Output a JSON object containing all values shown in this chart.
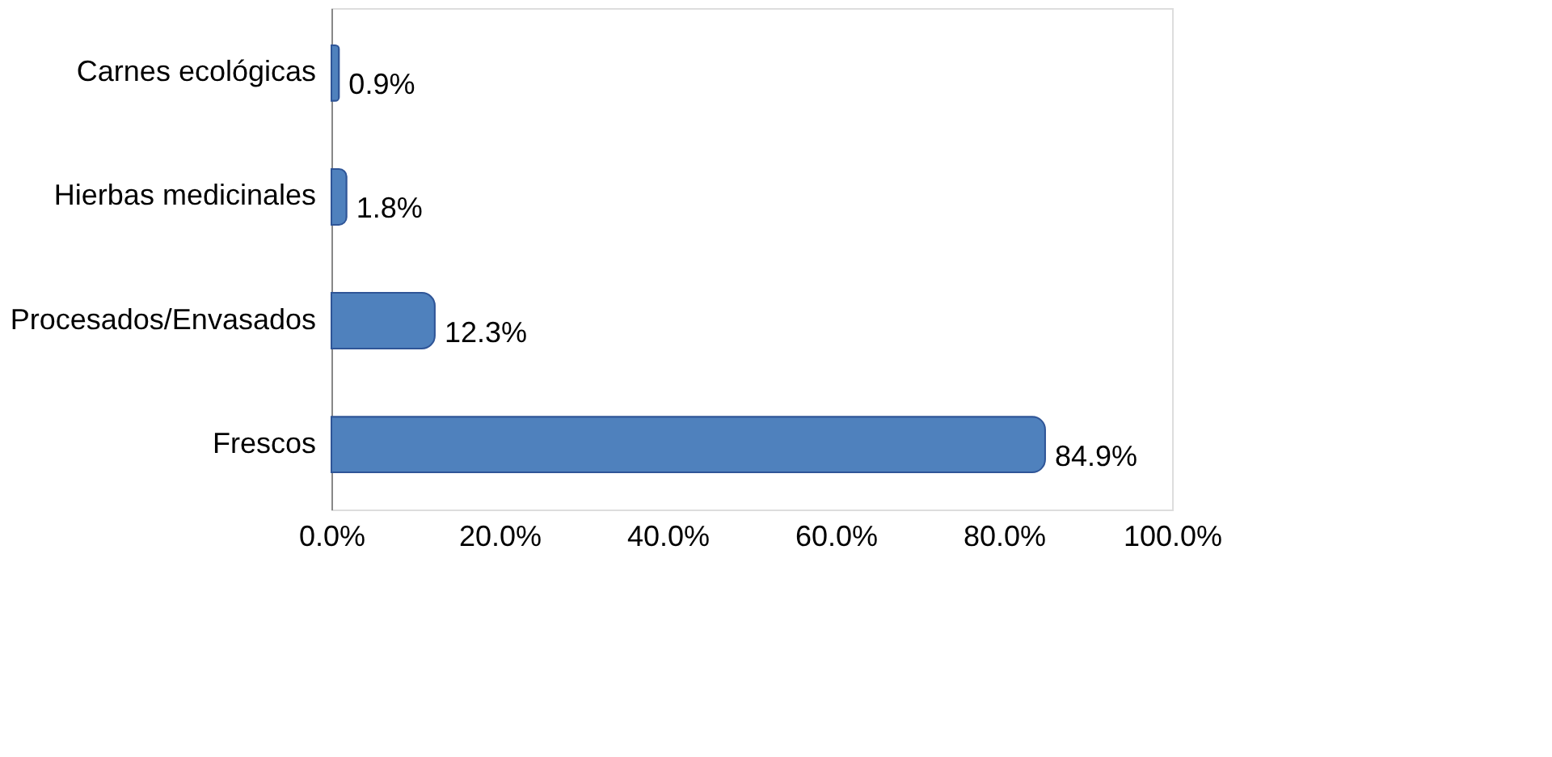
{
  "chart_data": {
    "type": "bar",
    "orientation": "horizontal",
    "categories": [
      "Carnes ecológicas",
      "Hierbas medicinales",
      "Procesados/Envasados",
      "Frescos"
    ],
    "values": [
      0.9,
      1.8,
      12.3,
      84.9
    ],
    "value_labels": [
      "0.9%",
      "1.8%",
      "12.3%",
      "84.9%"
    ],
    "color": "#4f81bd",
    "xlim": [
      0,
      100
    ],
    "xticks": [
      {
        "value": 0,
        "label": "0.0%"
      },
      {
        "value": 20,
        "label": "20.0%"
      },
      {
        "value": 40,
        "label": "40.0%"
      },
      {
        "value": 60,
        "label": "60.0%"
      },
      {
        "value": 80,
        "label": "80.0%"
      },
      {
        "value": 100,
        "label": "100.0%"
      }
    ],
    "grid": false
  }
}
